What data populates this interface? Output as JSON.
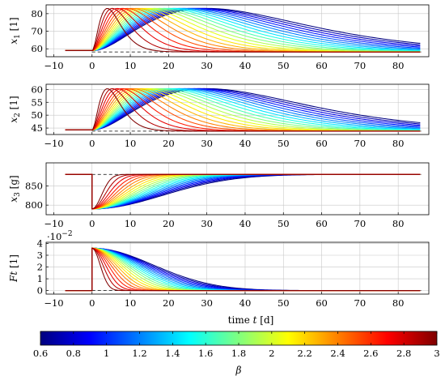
{
  "chart_data": {
    "type": "line",
    "description_free": true,
    "shared_x": {
      "label": "time t [d]",
      "label_main": "time ",
      "label_var": "t",
      "label_unit": " [d]",
      "range": [
        -12,
        88
      ],
      "ticks": [
        -10,
        0,
        10,
        20,
        30,
        40,
        50,
        60,
        70,
        80
      ],
      "tick_labels": [
        "−10",
        "0",
        "10",
        "20",
        "30",
        "40",
        "50",
        "60",
        "70",
        "80"
      ]
    },
    "colorbar": {
      "label": "β",
      "range": [
        0.6,
        3
      ],
      "ticks": [
        0.6,
        0.8,
        1,
        1.2,
        1.4,
        1.6,
        1.8,
        2,
        2.2,
        2.4,
        2.6,
        2.8,
        3
      ],
      "tick_labels": [
        "0.6",
        "0.8",
        "1",
        "1.2",
        "1.4",
        "1.6",
        "1.8",
        "2",
        "2.2",
        "2.4",
        "2.6",
        "2.8",
        "3"
      ],
      "colormap": "jet"
    },
    "beta_values": [
      0.6,
      0.72,
      0.84,
      0.96,
      1.08,
      1.2,
      1.32,
      1.44,
      1.56,
      1.68,
      1.8,
      1.92,
      2.04,
      2.16,
      2.28,
      2.4,
      2.52,
      2.64,
      2.76,
      2.88,
      3.0
    ],
    "x_start": -7,
    "x_end": 86,
    "step_time": 0,
    "peak_time_at_beta_min": 30,
    "peak_time_at_beta_max": 4,
    "subplots": [
      {
        "name": "x1",
        "ylabel_var": "x",
        "ylabel_sub": "1",
        "ylabel_unit": " [1]",
        "ylim": [
          55.5,
          85
        ],
        "yticks": [
          60,
          70,
          80
        ],
        "ytick_labels": [
          "60",
          "70",
          "80"
        ],
        "baseline": 59,
        "peak": 83,
        "final": 58.2,
        "shape": "rise"
      },
      {
        "name": "x2",
        "ylabel_var": "x",
        "ylabel_sub": "2",
        "ylabel_unit": " [1]",
        "ylim": [
          42.5,
          62
        ],
        "yticks": [
          45,
          50,
          55,
          60
        ],
        "ytick_labels": [
          "45",
          "50",
          "55",
          "60"
        ],
        "baseline": 44.3,
        "peak": 60.3,
        "final": 43.8,
        "shape": "rise"
      },
      {
        "name": "x3",
        "ylabel_var": "x",
        "ylabel_sub": "3",
        "ylabel_unit": " [g]",
        "ylim": [
          775,
          910
        ],
        "yticks": [
          800,
          850
        ],
        "ytick_labels": [
          "800",
          "850"
        ],
        "baseline": 880,
        "drop_to": 790,
        "final": 880,
        "shape": "recover"
      },
      {
        "name": "Ft",
        "ylabel_var": "Ft",
        "ylabel_sub": "",
        "ylabel_unit": " [1]",
        "ylim": [
          -0.3,
          4.1
        ],
        "yticks": [
          0,
          1,
          2,
          3,
          4
        ],
        "ytick_labels": [
          "0",
          "1",
          "2",
          "3",
          "4"
        ],
        "scale_note": "·10",
        "scale_exp": "−2",
        "baseline": 0,
        "jump_to": 3.6,
        "final": 0,
        "shape": "decay"
      }
    ]
  }
}
